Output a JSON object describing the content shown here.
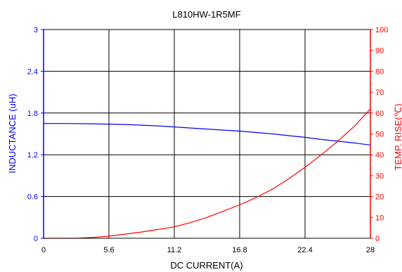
{
  "chart_data": {
    "type": "line",
    "title": "L810HW-1R5MF",
    "xlabel": "DC CURRENT(A)",
    "ylabel": "INDUCTANCE (uH)",
    "y2label": "TEMP. RISE(℃)",
    "x_ticks": [
      "0",
      "5.6",
      "11.2",
      "16.8",
      "22.4",
      "28"
    ],
    "y_ticks": [
      "0",
      "0.6",
      "1.2",
      "1.8",
      "2.4",
      "3"
    ],
    "y2_ticks": [
      "0",
      "10",
      "20",
      "30",
      "40",
      "50",
      "60",
      "70",
      "80",
      "90",
      "100"
    ],
    "xlim": [
      0,
      28
    ],
    "ylim": [
      0,
      3
    ],
    "y2lim": [
      0,
      100
    ],
    "grid": true,
    "colors": {
      "inductance": "#0000ff",
      "temp_rise": "#ff0000",
      "grid": "#000000"
    },
    "series": [
      {
        "axis": "left",
        "x": [
          0,
          2,
          4,
          5.6,
          7,
          8.4,
          9.8,
          11.2,
          12.6,
          14,
          15.4,
          16.8,
          18.2,
          19.6,
          21,
          22.4,
          23.8,
          25.2,
          26.6,
          28
        ],
        "values": [
          1.65,
          1.65,
          1.645,
          1.64,
          1.635,
          1.625,
          1.615,
          1.6,
          1.585,
          1.57,
          1.555,
          1.54,
          1.52,
          1.5,
          1.475,
          1.45,
          1.42,
          1.395,
          1.37,
          1.34
        ]
      },
      {
        "axis": "right",
        "x": [
          0,
          2.8,
          4.2,
          5.6,
          7,
          8.4,
          9.8,
          11.2,
          12.6,
          14,
          15.4,
          16.8,
          18.2,
          19.6,
          21,
          22.4,
          23.8,
          25.2,
          26.6,
          28
        ],
        "values": [
          0,
          0,
          0.4,
          1,
          2,
          3,
          4.2,
          5.5,
          7.5,
          10,
          13,
          16,
          19.5,
          23.5,
          28.5,
          34,
          40,
          46.5,
          53.5,
          62
        ]
      }
    ]
  }
}
